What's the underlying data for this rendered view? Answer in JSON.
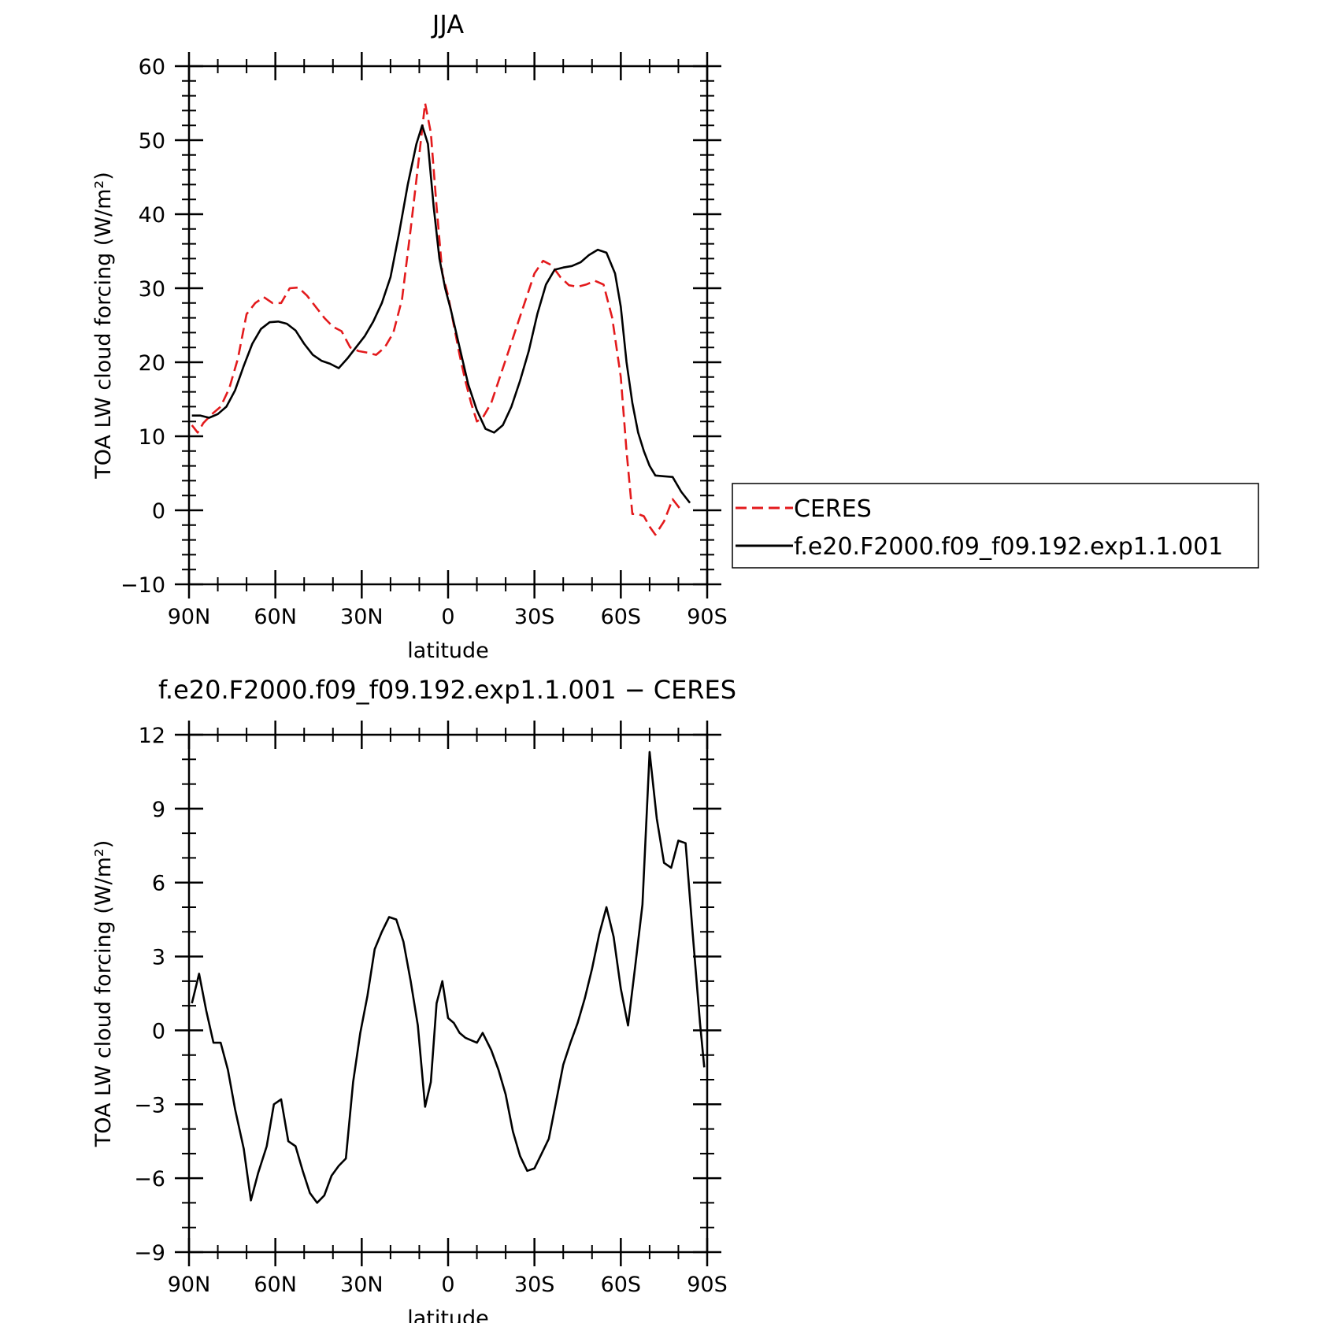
{
  "chart_data": [
    {
      "type": "line",
      "title": "JJA",
      "xlabel": "latitude",
      "ylabel": "TOA LW cloud forcing (W/m²)",
      "xlim": [
        90,
        -90
      ],
      "ylim": [
        -10,
        60
      ],
      "yticks": [
        -10,
        0,
        10,
        20,
        30,
        40,
        50,
        60
      ],
      "ytick_labels": [
        "−10",
        "0",
        "10",
        "20",
        "30",
        "40",
        "50",
        "60"
      ],
      "xticks": [
        90,
        60,
        30,
        0,
        -30,
        -60,
        -90
      ],
      "xtick_labels": [
        "90N",
        "60N",
        "30N",
        "0",
        "30S",
        "60S",
        "90S"
      ],
      "legend_position": "right-outside",
      "series": [
        {
          "name": "CERES",
          "color": "#e31a1c",
          "dash": "dashed",
          "x": [
            89,
            87,
            85,
            82,
            79,
            76,
            73,
            70,
            67,
            64,
            61,
            58,
            55,
            52,
            49,
            46,
            43,
            40,
            37,
            34,
            31,
            28,
            25,
            22,
            19,
            16,
            13,
            10,
            8,
            6,
            4,
            2,
            0,
            -2,
            -4,
            -6,
            -8,
            -10,
            -12,
            -15,
            -18,
            -21,
            -24,
            -27,
            -30,
            -33,
            -36,
            -39,
            -42,
            -45,
            -48,
            -51,
            -54,
            -57,
            -60,
            -62,
            -64,
            -66,
            -68,
            -70,
            -72,
            -75,
            -78,
            -81,
            -84,
            -87,
            -89
          ],
          "y": [
            11.5,
            10.5,
            11.8,
            13,
            14,
            16.5,
            20.5,
            26.5,
            28,
            28.8,
            28,
            28,
            30,
            30.1,
            29,
            27.5,
            26,
            24.8,
            24.2,
            22,
            21.5,
            21.3,
            21,
            22,
            24,
            28.5,
            38,
            48,
            55,
            51,
            41,
            32,
            29,
            25,
            21,
            17.5,
            14.5,
            12,
            12.5,
            14.5,
            18,
            21.5,
            25,
            28.5,
            32,
            33.7,
            33.1,
            31.5,
            30.4,
            30.2,
            30.5,
            31,
            30.5,
            26,
            18,
            8,
            -0.5,
            -0.5,
            -0.8,
            -2.2,
            -3.3,
            -1.5,
            1.5,
            0,
            0,
            0,
            0
          ]
        },
        {
          "name": "f.e20.F2000.f09_f09.192.exp1.1.001",
          "color": "#000000",
          "dash": "solid",
          "x": [
            89,
            86,
            83,
            80,
            77,
            74,
            71,
            68,
            65,
            62,
            59,
            56,
            53,
            50,
            47,
            44,
            41,
            38,
            35,
            32,
            29,
            26,
            23,
            20,
            17,
            14,
            11,
            9,
            7,
            5,
            3,
            1,
            -1,
            -4,
            -7,
            -10,
            -13,
            -16,
            -19,
            -22,
            -25,
            -28,
            -31,
            -34,
            -37,
            -40,
            -43,
            -46,
            -49,
            -52,
            -55,
            -58,
            -60,
            -62,
            -64,
            -66,
            -68,
            -70,
            -72,
            -75,
            -78,
            -81,
            -84,
            -86,
            -89
          ],
          "y": [
            12.8,
            12.8,
            12.5,
            13,
            14,
            16.2,
            19.5,
            22.5,
            24.5,
            25.4,
            25.5,
            25.2,
            24.3,
            22.5,
            21,
            20.2,
            19.8,
            19.2,
            20.5,
            22,
            23.5,
            25.5,
            28,
            31.5,
            37.5,
            44,
            49.5,
            52,
            49.5,
            41,
            34,
            30,
            27,
            22,
            17,
            13.5,
            11,
            10.5,
            11.5,
            14,
            17.5,
            21.5,
            26.5,
            30.5,
            32.5,
            32.8,
            33,
            33.5,
            34.5,
            35.2,
            34.8,
            32,
            27.5,
            20,
            14.5,
            10.5,
            8,
            6,
            4.7,
            4.6,
            4.5,
            2.5,
            1.0,
            0,
            0
          ]
        }
      ]
    },
    {
      "type": "line",
      "title": "f.e20.F2000.f09_f09.192.exp1.1.001 − CERES",
      "xlabel": "latitude",
      "ylabel": "TOA LW cloud forcing (W/m²)",
      "xlim": [
        90,
        -90
      ],
      "ylim": [
        -9,
        12
      ],
      "yticks": [
        -9,
        -6,
        -3,
        0,
        3,
        6,
        9,
        12
      ],
      "ytick_labels": [
        "−9",
        "−6",
        "−3",
        "0",
        "3",
        "6",
        "9",
        "12"
      ],
      "xticks": [
        90,
        60,
        30,
        0,
        -30,
        -60,
        -90
      ],
      "xtick_labels": [
        "90N",
        "60N",
        "30N",
        "0",
        "30S",
        "60S",
        "90S"
      ],
      "series": [
        {
          "color": "#000000",
          "x": [
            89,
            86.5,
            84,
            81.5,
            79,
            76.5,
            74,
            71,
            68.5,
            66,
            63,
            60.5,
            58,
            55.5,
            53,
            50.5,
            48,
            45.5,
            43,
            40.5,
            38,
            35.5,
            33,
            30.5,
            28,
            25.5,
            23,
            20.5,
            18,
            15.5,
            13,
            10.5,
            8,
            6,
            4,
            2,
            0,
            -2,
            -4,
            -6,
            -8,
            -10,
            -12,
            -15,
            -17.5,
            -20,
            -22.5,
            -25,
            -27.5,
            -30,
            -32.5,
            -35,
            -37.5,
            -40,
            -42.5,
            -45,
            -47.5,
            -50,
            -52.5,
            -55,
            -57.5,
            -60,
            -62.5,
            -65,
            -67.5,
            -70,
            -72.5,
            -75,
            -77.5,
            -80,
            -82.5,
            -85,
            -87.5,
            -89
          ],
          "y": [
            1.1,
            2.3,
            0.8,
            -0.5,
            -0.5,
            -1.6,
            -3.2,
            -4.8,
            -6.9,
            -5.8,
            -4.7,
            -3.0,
            -2.8,
            -4.5,
            -4.7,
            -5.7,
            -6.6,
            -7.0,
            -6.7,
            -5.9,
            -5.5,
            -5.2,
            -2.1,
            -0.1,
            1.4,
            3.3,
            4.0,
            4.6,
            4.5,
            3.6,
            2.0,
            0.2,
            -3.1,
            -2.1,
            1.1,
            2.0,
            0.5,
            0.3,
            -0.1,
            -0.3,
            -0.4,
            -0.5,
            -0.1,
            -0.8,
            -1.6,
            -2.6,
            -4.1,
            -5.1,
            -5.7,
            -5.6,
            -5.0,
            -4.4,
            -2.9,
            -1.4,
            -0.5,
            0.3,
            1.3,
            2.5,
            3.9,
            5.0,
            3.8,
            1.7,
            0.2,
            2.6,
            5.1,
            11.3,
            8.6,
            6.8,
            6.6,
            7.7,
            7.6,
            3.9,
            0.3,
            -1.5
          ]
        }
      ]
    }
  ]
}
